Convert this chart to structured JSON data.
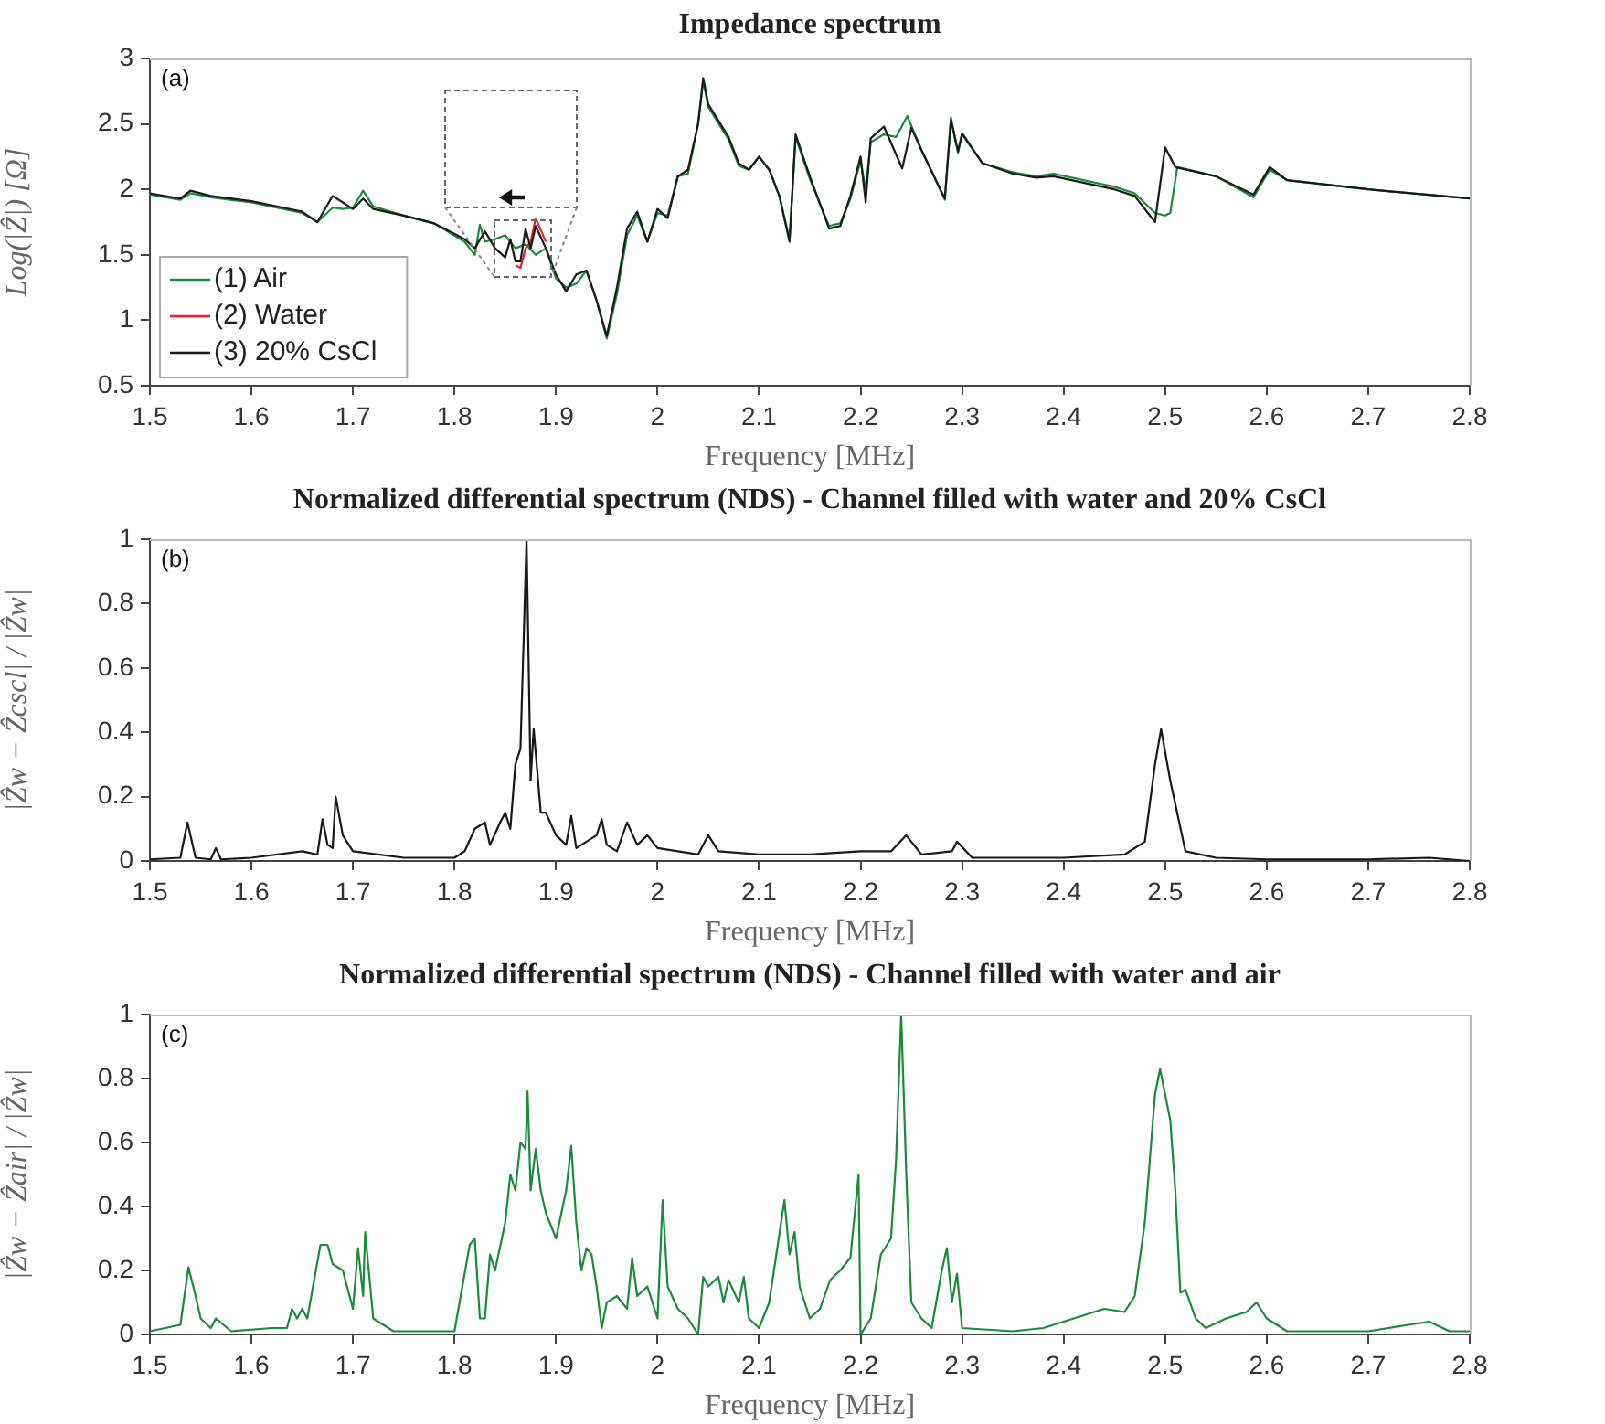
{
  "chart_data": [
    {
      "type": "line",
      "title": "Impedance spectrum",
      "xlabel": "Frequency [MHz]",
      "ylabel": "Log(|Ẑ|) [Ω]",
      "xlim": [
        1.5,
        2.8
      ],
      "xticks": [
        1.5,
        1.6,
        1.7,
        1.8,
        1.9,
        2,
        2.1,
        2.2,
        2.3,
        2.4,
        2.5,
        2.6,
        2.7,
        2.8
      ],
      "ylim": [
        0.5,
        3
      ],
      "yticks": [
        0.5,
        1,
        1.5,
        2,
        2.5,
        3
      ],
      "grid": false,
      "legend": "bottom left",
      "marker": "none",
      "line_style": "solid",
      "annotations": [
        "(a)"
      ],
      "series": [
        {
          "name": "(1) Air",
          "color": "#1a8a3c",
          "x": [
            1.5,
            1.53,
            1.54,
            1.56,
            1.6,
            1.65,
            1.665,
            1.68,
            1.69,
            1.7,
            1.71,
            1.72,
            1.75,
            1.78,
            1.81,
            1.82,
            1.825,
            1.83,
            1.84,
            1.85,
            1.86,
            1.87,
            1.88,
            1.89,
            1.9,
            1.91,
            1.92,
            1.93,
            1.94,
            1.95,
            1.96,
            1.97,
            1.98,
            1.99,
            2.0,
            2.01,
            2.02,
            2.03,
            2.04,
            2.045,
            2.05,
            2.07,
            2.08,
            2.09,
            2.1,
            2.11,
            2.12,
            2.13,
            2.136,
            2.15,
            2.169,
            2.18,
            2.19,
            2.2,
            2.205,
            2.21,
            2.223,
            2.235,
            2.246,
            2.26,
            2.283,
            2.289,
            2.296,
            2.3,
            2.32,
            2.35,
            2.373,
            2.39,
            2.45,
            2.47,
            2.49,
            2.5,
            2.505,
            2.512,
            2.55,
            2.587,
            2.603,
            2.62,
            2.7,
            2.8
          ],
          "values": [
            1.96,
            1.92,
            1.97,
            1.94,
            1.9,
            1.82,
            1.75,
            1.86,
            1.85,
            1.86,
            1.99,
            1.87,
            1.8,
            1.74,
            1.6,
            1.5,
            1.73,
            1.6,
            1.62,
            1.65,
            1.55,
            1.58,
            1.5,
            1.55,
            1.32,
            1.25,
            1.28,
            1.38,
            1.15,
            0.86,
            1.2,
            1.65,
            1.8,
            1.6,
            1.82,
            1.8,
            2.1,
            2.12,
            2.5,
            2.83,
            2.63,
            2.38,
            2.18,
            2.15,
            2.25,
            2.15,
            1.95,
            1.62,
            2.4,
            2.08,
            1.72,
            1.74,
            1.93,
            2.22,
            2.0,
            2.36,
            2.42,
            2.4,
            2.56,
            2.3,
            1.92,
            2.55,
            2.28,
            2.42,
            2.2,
            2.13,
            2.1,
            2.12,
            2.02,
            1.97,
            1.82,
            1.8,
            1.82,
            2.17,
            2.1,
            1.94,
            2.15,
            2.07,
            2.0,
            1.93
          ]
        },
        {
          "name": "(2) Water",
          "color": "#e8202a",
          "x": [
            1.86,
            1.865,
            1.87,
            1.875,
            1.88,
            1.89
          ],
          "values": [
            1.42,
            1.4,
            1.55,
            1.6,
            1.78,
            1.6
          ]
        },
        {
          "name": "(3) 20% CsCl",
          "color": "#1a1a1a",
          "x": [
            1.5,
            1.53,
            1.54,
            1.56,
            1.6,
            1.65,
            1.665,
            1.68,
            1.69,
            1.7,
            1.71,
            1.72,
            1.75,
            1.78,
            1.81,
            1.82,
            1.83,
            1.84,
            1.85,
            1.855,
            1.86,
            1.865,
            1.87,
            1.875,
            1.88,
            1.89,
            1.9,
            1.91,
            1.92,
            1.93,
            1.94,
            1.95,
            1.96,
            1.97,
            1.98,
            1.99,
            2.0,
            2.01,
            2.02,
            2.03,
            2.04,
            2.045,
            2.05,
            2.07,
            2.08,
            2.09,
            2.1,
            2.11,
            2.12,
            2.13,
            2.136,
            2.15,
            2.169,
            2.18,
            2.19,
            2.2,
            2.205,
            2.21,
            2.223,
            2.241,
            2.25,
            2.26,
            2.283,
            2.289,
            2.296,
            2.3,
            2.32,
            2.35,
            2.373,
            2.39,
            2.45,
            2.47,
            2.49,
            2.5,
            2.51,
            2.55,
            2.587,
            2.603,
            2.62,
            2.7,
            2.8
          ],
          "values": [
            1.97,
            1.93,
            1.99,
            1.95,
            1.91,
            1.83,
            1.75,
            1.95,
            1.9,
            1.85,
            1.93,
            1.85,
            1.8,
            1.74,
            1.62,
            1.55,
            1.68,
            1.55,
            1.48,
            1.62,
            1.45,
            1.45,
            1.7,
            1.55,
            1.72,
            1.55,
            1.35,
            1.22,
            1.35,
            1.38,
            1.15,
            0.88,
            1.25,
            1.7,
            1.83,
            1.6,
            1.85,
            1.78,
            2.1,
            2.15,
            2.5,
            2.85,
            2.65,
            2.4,
            2.2,
            2.15,
            2.25,
            2.15,
            1.95,
            1.6,
            2.42,
            2.1,
            1.7,
            1.72,
            1.95,
            2.25,
            1.9,
            2.39,
            2.48,
            2.16,
            2.47,
            2.3,
            1.93,
            2.53,
            2.29,
            2.43,
            2.2,
            2.12,
            2.09,
            2.1,
            2.0,
            1.95,
            1.75,
            2.32,
            2.17,
            2.1,
            1.96,
            2.17,
            2.07,
            2.0,
            1.93
          ]
        }
      ]
    },
    {
      "type": "line",
      "title": "Normalized differential spectrum (NDS) - Channel filled with water and 20% CsCl",
      "xlabel": "Frequency [MHz]",
      "ylabel": "|Ẑw − Ẑcscl| / |Ẑw|",
      "xlim": [
        1.5,
        2.8
      ],
      "xticks": [
        1.5,
        1.6,
        1.7,
        1.8,
        1.9,
        2,
        2.1,
        2.2,
        2.3,
        2.4,
        2.5,
        2.6,
        2.7,
        2.8
      ],
      "ylim": [
        0,
        1
      ],
      "yticks": [
        0,
        0.2,
        0.4,
        0.6,
        0.8,
        1
      ],
      "grid": false,
      "marker": "none",
      "line_style": "solid",
      "annotations": [
        "(b)"
      ],
      "color": "#1a1a1a",
      "x": [
        1.5,
        1.53,
        1.537,
        1.545,
        1.56,
        1.565,
        1.57,
        1.6,
        1.65,
        1.665,
        1.67,
        1.675,
        1.68,
        1.683,
        1.69,
        1.7,
        1.75,
        1.8,
        1.81,
        1.82,
        1.83,
        1.835,
        1.845,
        1.85,
        1.855,
        1.86,
        1.865,
        1.871,
        1.875,
        1.878,
        1.885,
        1.89,
        1.9,
        1.91,
        1.915,
        1.92,
        1.93,
        1.94,
        1.945,
        1.95,
        1.96,
        1.97,
        1.98,
        1.99,
        2.0,
        2.02,
        2.04,
        2.05,
        2.06,
        2.1,
        2.15,
        2.2,
        2.23,
        2.245,
        2.26,
        2.29,
        2.295,
        2.31,
        2.4,
        2.46,
        2.48,
        2.49,
        2.496,
        2.505,
        2.52,
        2.55,
        2.6,
        2.7,
        2.76,
        2.8
      ],
      "values": [
        0.005,
        0.01,
        0.12,
        0.01,
        0.005,
        0.04,
        0.005,
        0.01,
        0.03,
        0.02,
        0.13,
        0.05,
        0.04,
        0.2,
        0.08,
        0.03,
        0.01,
        0.01,
        0.03,
        0.1,
        0.12,
        0.05,
        0.12,
        0.15,
        0.1,
        0.3,
        0.35,
        1,
        0.25,
        0.41,
        0.15,
        0.15,
        0.08,
        0.05,
        0.14,
        0.04,
        0.06,
        0.08,
        0.13,
        0.05,
        0.03,
        0.12,
        0.05,
        0.08,
        0.04,
        0.03,
        0.02,
        0.08,
        0.03,
        0.02,
        0.02,
        0.03,
        0.03,
        0.08,
        0.02,
        0.03,
        0.06,
        0.01,
        0.01,
        0.02,
        0.06,
        0.3,
        0.41,
        0.25,
        0.03,
        0.01,
        0.005,
        0.005,
        0.01,
        0
      ]
    },
    {
      "type": "line",
      "title": "Normalized differential spectrum (NDS) - Channel filled with water and air",
      "xlabel": "Frequency [MHz]",
      "ylabel": "|Ẑw − Ẑair| / |Ẑw|",
      "xlim": [
        1.5,
        2.8
      ],
      "xticks": [
        1.5,
        1.6,
        1.7,
        1.8,
        1.9,
        2,
        2.1,
        2.2,
        2.3,
        2.4,
        2.5,
        2.6,
        2.7,
        2.8
      ],
      "ylim": [
        0,
        1
      ],
      "yticks": [
        0,
        0.2,
        0.4,
        0.6,
        0.8,
        1
      ],
      "grid": false,
      "marker": "none",
      "line_style": "solid",
      "annotations": [
        "(c)"
      ],
      "color": "#1a8a3c",
      "x": [
        1.5,
        1.53,
        1.538,
        1.545,
        1.55,
        1.56,
        1.565,
        1.58,
        1.62,
        1.635,
        1.64,
        1.645,
        1.65,
        1.655,
        1.668,
        1.675,
        1.68,
        1.69,
        1.7,
        1.705,
        1.71,
        1.712,
        1.72,
        1.74,
        1.8,
        1.815,
        1.82,
        1.825,
        1.83,
        1.835,
        1.84,
        1.85,
        1.855,
        1.86,
        1.865,
        1.87,
        1.872,
        1.875,
        1.88,
        1.885,
        1.89,
        1.9,
        1.91,
        1.915,
        1.92,
        1.925,
        1.93,
        1.935,
        1.94,
        1.945,
        1.95,
        1.96,
        1.97,
        1.975,
        1.98,
        1.99,
        2.0,
        2.005,
        2.01,
        2.02,
        2.03,
        2.04,
        2.045,
        2.05,
        2.06,
        2.065,
        2.07,
        2.08,
        2.085,
        2.09,
        2.1,
        2.11,
        2.125,
        2.13,
        2.135,
        2.14,
        2.15,
        2.16,
        2.17,
        2.18,
        2.19,
        2.198,
        2.2,
        2.21,
        2.22,
        2.23,
        2.235,
        2.24,
        2.245,
        2.25,
        2.26,
        2.27,
        2.28,
        2.285,
        2.29,
        2.295,
        2.3,
        2.35,
        2.38,
        2.4,
        2.44,
        2.46,
        2.47,
        2.48,
        2.49,
        2.495,
        2.5,
        2.505,
        2.51,
        2.515,
        2.52,
        2.53,
        2.54,
        2.56,
        2.58,
        2.59,
        2.6,
        2.62,
        2.7,
        2.76,
        2.78,
        2.8
      ],
      "values": [
        0.01,
        0.03,
        0.21,
        0.12,
        0.05,
        0.02,
        0.05,
        0.01,
        0.02,
        0.02,
        0.08,
        0.05,
        0.08,
        0.05,
        0.28,
        0.28,
        0.22,
        0.2,
        0.08,
        0.27,
        0.12,
        0.32,
        0.05,
        0.01,
        0.01,
        0.28,
        0.3,
        0.05,
        0.05,
        0.25,
        0.2,
        0.35,
        0.5,
        0.45,
        0.6,
        0.58,
        0.76,
        0.45,
        0.58,
        0.45,
        0.38,
        0.3,
        0.45,
        0.59,
        0.35,
        0.2,
        0.27,
        0.25,
        0.15,
        0.02,
        0.1,
        0.12,
        0.08,
        0.24,
        0.12,
        0.15,
        0.05,
        0.42,
        0.15,
        0.08,
        0.05,
        0,
        0.18,
        0.15,
        0.18,
        0.1,
        0.17,
        0.1,
        0.18,
        0.05,
        0.02,
        0.1,
        0.42,
        0.25,
        0.32,
        0.15,
        0.05,
        0.08,
        0.17,
        0.2,
        0.24,
        0.5,
        0,
        0.05,
        0.25,
        0.3,
        0.55,
        1,
        0.5,
        0.1,
        0.05,
        0.02,
        0.2,
        0.27,
        0.1,
        0.19,
        0.02,
        0.01,
        0.02,
        0.04,
        0.08,
        0.07,
        0.12,
        0.35,
        0.75,
        0.83,
        0.75,
        0.67,
        0.45,
        0.13,
        0.14,
        0.05,
        0.02,
        0.05,
        0.07,
        0.1,
        0.05,
        0.01,
        0.01,
        0.04,
        0.01,
        0.01
      ]
    }
  ]
}
